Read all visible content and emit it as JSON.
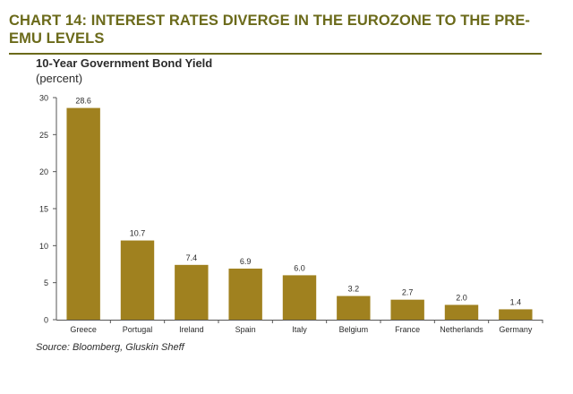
{
  "header": {
    "title": "CHART 14: INTEREST RATES DIVERGE IN THE EUROZONE TO THE PRE-EMU LEVELS",
    "subtitle": "10-Year Government Bond Yield",
    "unit": "(percent)"
  },
  "footer": {
    "source": "Source: Bloomberg, Gluskin Sheff"
  },
  "colors": {
    "accent": "#6b6a1a",
    "bar": "#a0811f",
    "text": "#2b2b2b"
  },
  "chart_data": {
    "type": "bar",
    "title": "10-Year Government Bond Yield",
    "ylabel": "(percent)",
    "xlabel": "",
    "categories": [
      "Greece",
      "Portugal",
      "Ireland",
      "Spain",
      "Italy",
      "Belgium",
      "France",
      "Netherlands",
      "Germany"
    ],
    "values": [
      28.6,
      10.7,
      7.4,
      6.9,
      6.0,
      3.2,
      2.7,
      2.0,
      1.4
    ],
    "value_labels": [
      "28.6",
      "10.7",
      "7.4",
      "6.9",
      "6.0",
      "3.2",
      "2.7",
      "2.0",
      "1.4"
    ],
    "ylim": [
      0,
      30
    ],
    "yticks": [
      0,
      5,
      10,
      15,
      20,
      25,
      30
    ],
    "grid": false,
    "legend": "none"
  }
}
